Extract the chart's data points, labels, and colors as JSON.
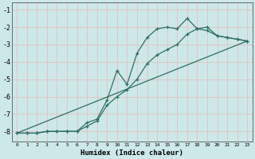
{
  "xlabel": "Humidex (Indice chaleur)",
  "xlim": [
    -0.5,
    23.5
  ],
  "ylim": [
    -8.6,
    -0.6
  ],
  "yticks": [
    -8,
    -7,
    -6,
    -5,
    -4,
    -3,
    -2,
    -1
  ],
  "xticks": [
    0,
    1,
    2,
    3,
    4,
    5,
    6,
    7,
    8,
    9,
    10,
    11,
    12,
    13,
    14,
    15,
    16,
    17,
    18,
    19,
    20,
    21,
    22,
    23
  ],
  "background_color": "#cde8e8",
  "grid_color": "#b0d0d0",
  "line_color": "#2d6e63",
  "series1_x": [
    0,
    1,
    2,
    3,
    4,
    5,
    6,
    7,
    8,
    9,
    10,
    11,
    12,
    13,
    14,
    15,
    16,
    17,
    18,
    19,
    20,
    21,
    22,
    23
  ],
  "series1_y": [
    -8.1,
    -8.1,
    -8.1,
    -8.0,
    -8.0,
    -8.0,
    -8.0,
    -7.5,
    -7.3,
    -6.2,
    -4.5,
    -5.3,
    -3.5,
    -2.6,
    -2.1,
    -2.0,
    -2.1,
    -1.5,
    -2.1,
    -2.0,
    -2.5,
    -2.6,
    -2.7,
    -2.8
  ],
  "series2_x": [
    0,
    1,
    2,
    3,
    4,
    5,
    6,
    7,
    8,
    9,
    10,
    11,
    12,
    13,
    14,
    15,
    16,
    17,
    18,
    19,
    20,
    21,
    22,
    23
  ],
  "series2_y": [
    -8.1,
    -8.1,
    -8.1,
    -8.0,
    -8.0,
    -8.0,
    -8.0,
    -7.7,
    -7.4,
    -6.5,
    -6.0,
    -5.6,
    -5.0,
    -4.1,
    -3.6,
    -3.3,
    -3.0,
    -2.4,
    -2.1,
    -2.2,
    -2.5,
    -2.6,
    -2.7,
    -2.8
  ],
  "trend_x": [
    0,
    23
  ],
  "trend_y": [
    -8.1,
    -2.8
  ]
}
